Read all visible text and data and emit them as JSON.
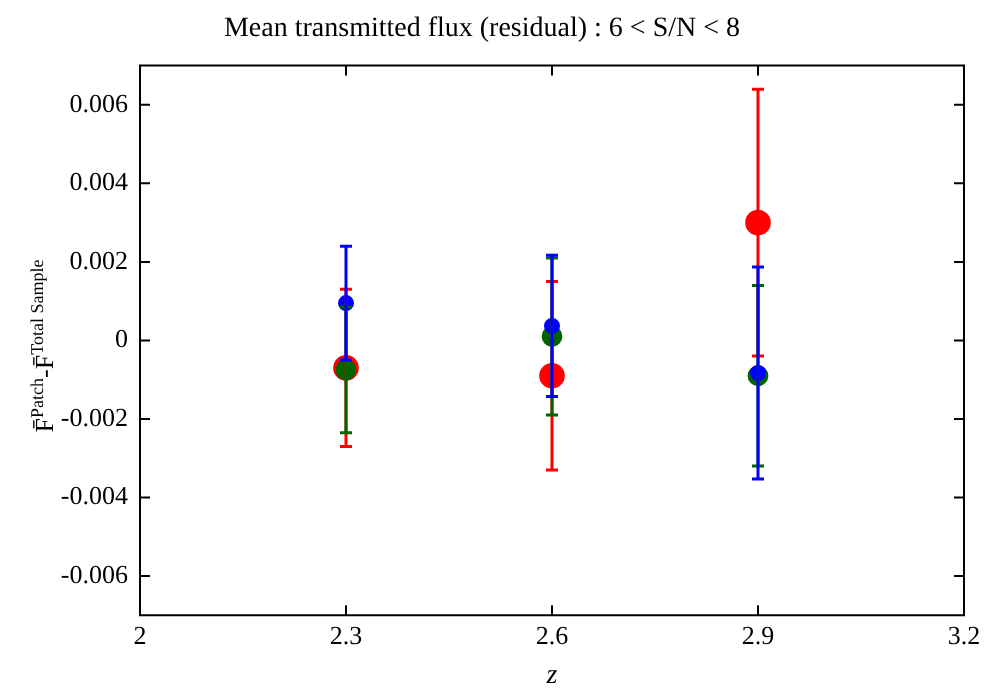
{
  "chart_data": {
    "type": "scatter",
    "title": "Mean transmitted flux (residual) : 6 < S/N < 8",
    "xlabel": "z",
    "ylabel": "F̄$^{Patch}$-F̄$^{Total Sample}$",
    "x": [
      2.3,
      2.6,
      2.9
    ],
    "series": [
      {
        "color": "#ff0000",
        "values": [
          -0.0007,
          -0.0009,
          0.003
        ],
        "errors": [
          0.002,
          0.0024,
          0.0034
        ]
      },
      {
        "color": "#006400",
        "values": [
          -0.00075,
          0.0001,
          -0.0009
        ],
        "errors": [
          0.0016,
          0.002,
          0.0023
        ]
      },
      {
        "color": "#0000ff",
        "values": [
          0.00095,
          0.00037,
          -0.00083
        ],
        "errors": [
          0.00145,
          0.0018,
          0.0027
        ]
      }
    ],
    "xlim": [
      2,
      3.2
    ],
    "xticks": [
      2,
      2.3,
      2.6,
      2.9,
      3.2
    ],
    "ylim": [
      -0.007,
      0.007
    ],
    "yticks": [
      -0.006,
      -0.004,
      -0.002,
      0,
      0.002,
      0.004,
      0.006
    ],
    "grid": false,
    "legend": false,
    "marker": "circle"
  }
}
